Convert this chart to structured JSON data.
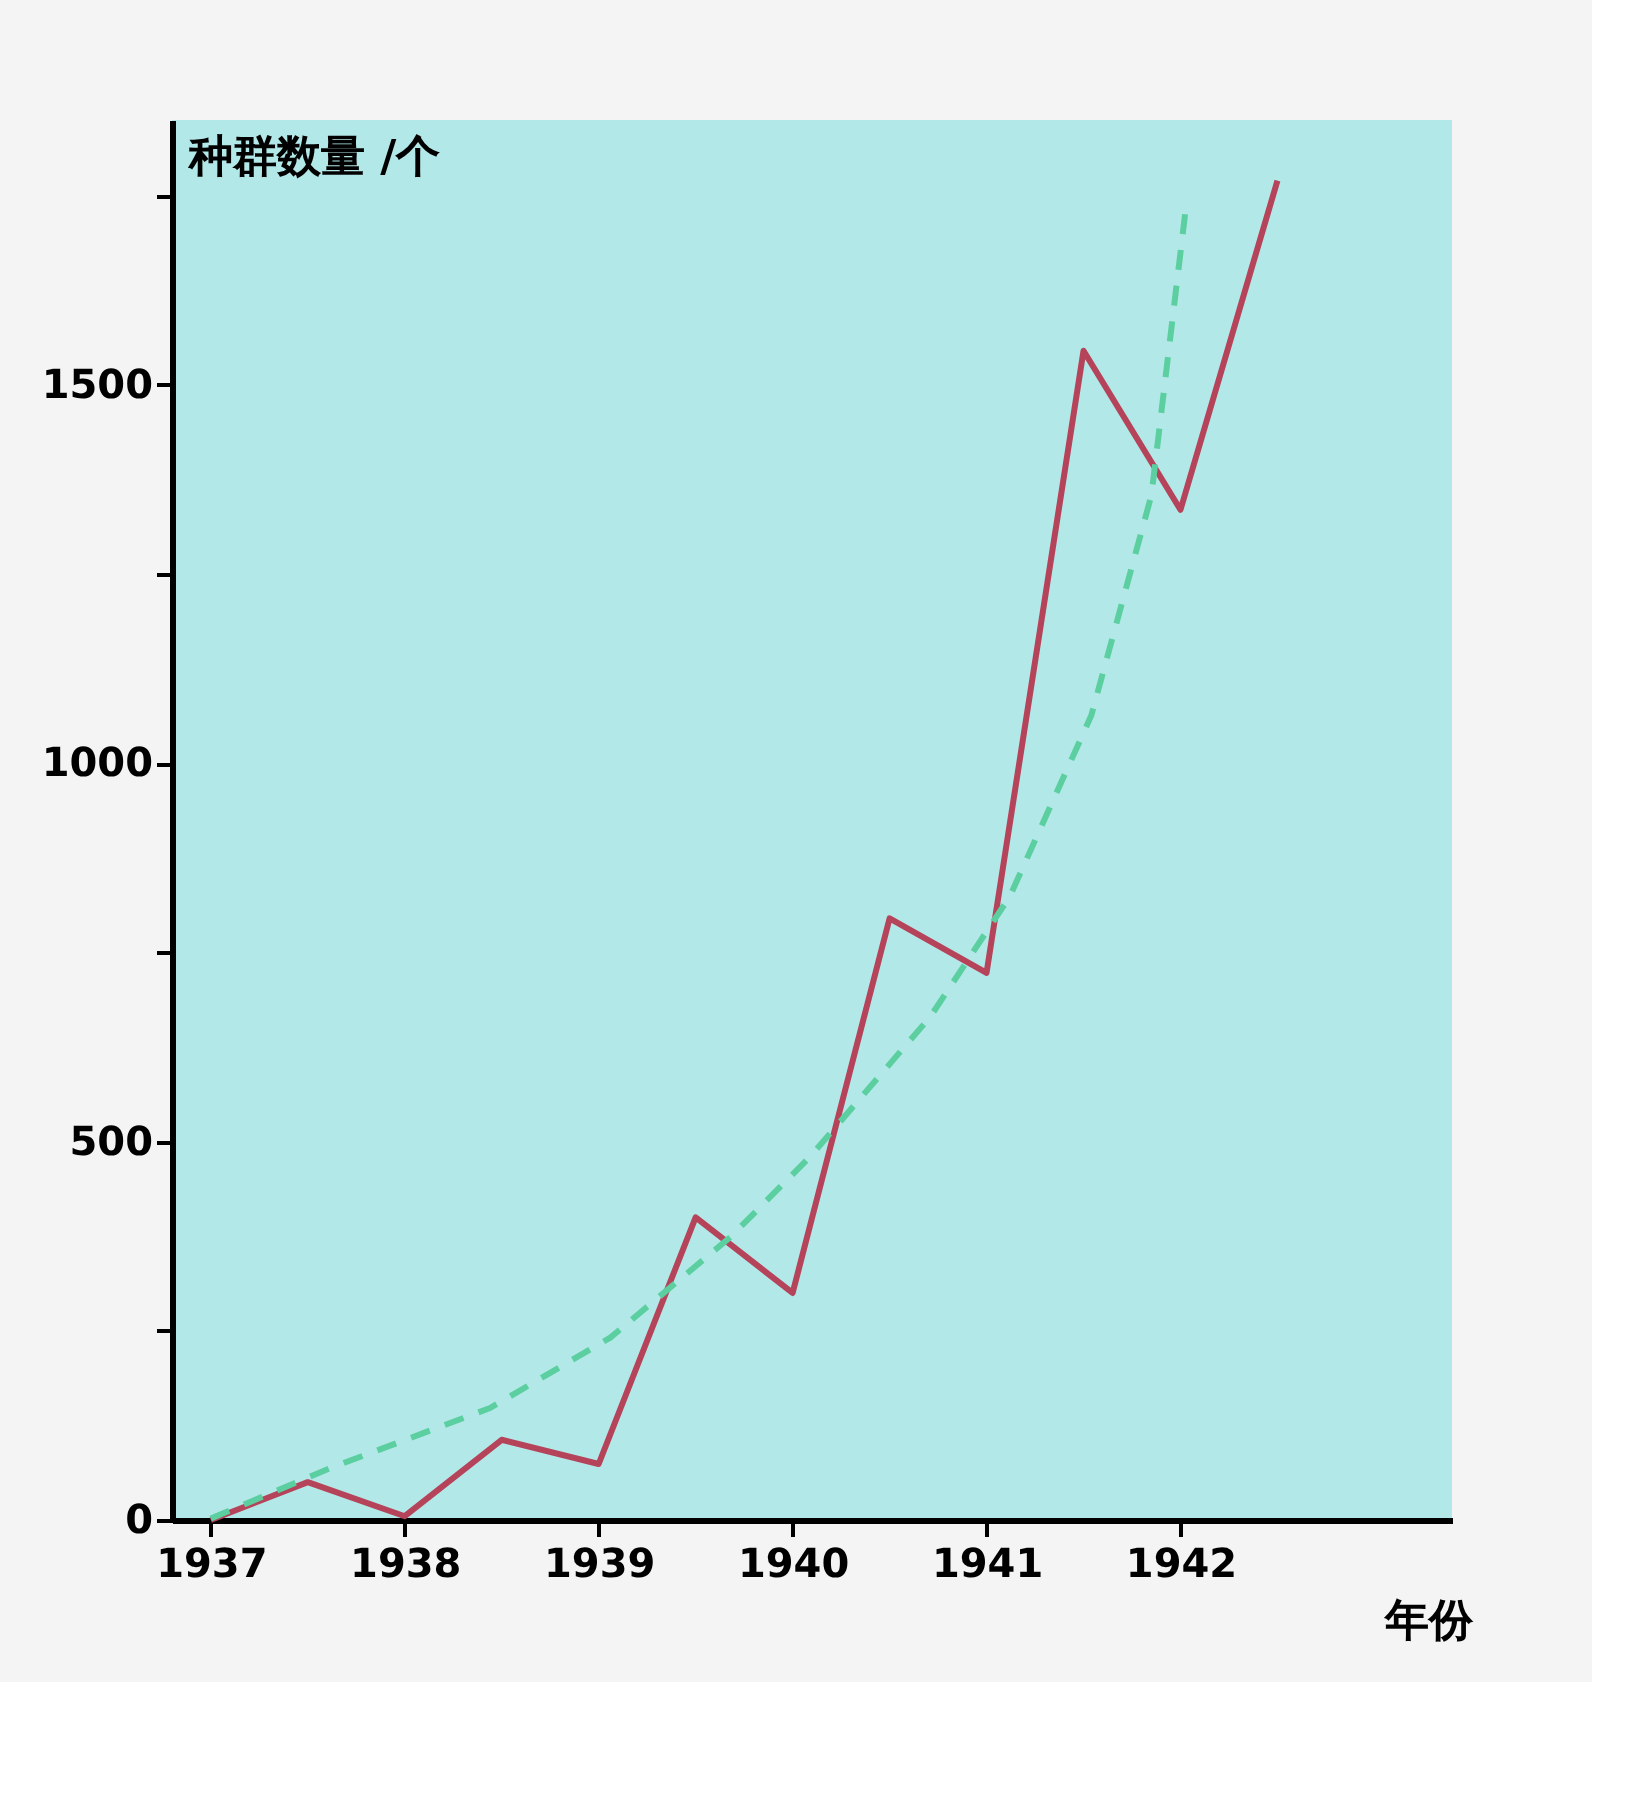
{
  "chart_data": {
    "type": "line",
    "xlabel": "年份",
    "ylabel": "种群数量 /个",
    "xlim": [
      1936.8,
      1943.4
    ],
    "xticks": [
      1937,
      1938,
      1939,
      1940,
      1941,
      1942
    ],
    "ylim": [
      0,
      1850
    ],
    "yticks": [
      0,
      {
        "value": 250,
        "label": null
      },
      500,
      {
        "value": 750,
        "label": null
      },
      1000,
      {
        "value": 1250,
        "label": null
      },
      1500,
      {
        "value": 1750,
        "label": null
      }
    ],
    "grid": false,
    "marker": "none",
    "series": [
      {
        "color": "#b5445a",
        "line_style": "solid",
        "x": [
          1937,
          1937.5,
          1938,
          1938.5,
          1939,
          1939.5,
          1940,
          1940.5,
          1941,
          1941.5,
          1942,
          1942.5
        ],
        "values": [
          0,
          50,
          5,
          106,
          74,
          400,
          300,
          795,
          723,
          1545,
          1335,
          1770
        ]
      },
      {
        "color": "#5ccfa0",
        "line_style": "dashed",
        "x": [
          1937,
          1937.62,
          1938.44,
          1939.06,
          1939.68,
          1940.09,
          1940.71,
          1941.12,
          1941.54,
          1941.85,
          1942.03
        ],
        "values": [
          2,
          69,
          148,
          241,
          374,
          480,
          665,
          824,
          1063,
          1354,
          1739
        ]
      }
    ]
  }
}
